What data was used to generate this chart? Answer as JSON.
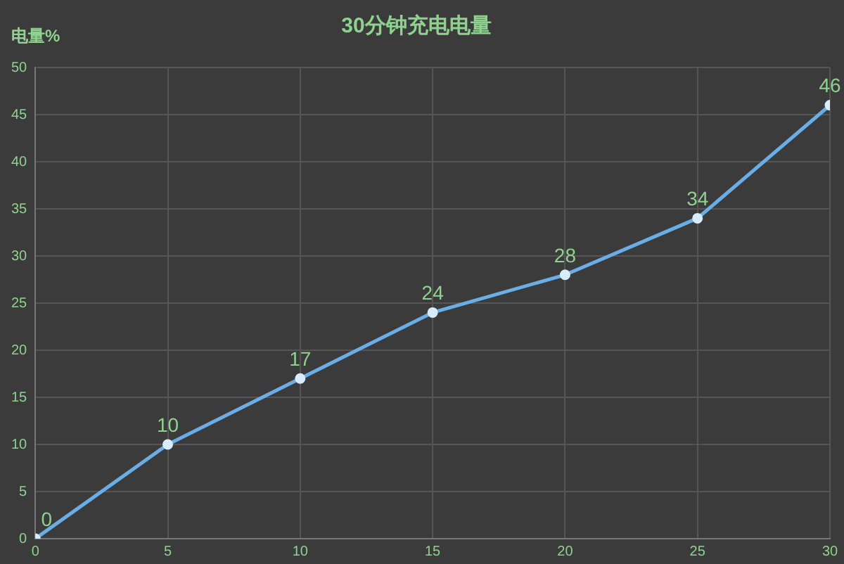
{
  "chart_data": {
    "type": "line",
    "title": "30分钟充电电量",
    "ylabel": "电量%",
    "x": [
      0,
      5,
      10,
      15,
      20,
      25,
      30
    ],
    "series": [
      {
        "color": "#6aaee8",
        "values": [
          0,
          10,
          17,
          24,
          28,
          34,
          46
        ]
      }
    ],
    "xlim": [
      0,
      30
    ],
    "xticks": [
      0,
      5,
      10,
      15,
      20,
      25,
      30
    ],
    "ylim": [
      0,
      50
    ],
    "yticks": [
      0,
      5,
      10,
      15,
      20,
      25,
      30,
      35,
      40,
      45,
      50
    ],
    "grid": true,
    "legend": false,
    "marker": "circle",
    "line_style": "solid",
    "data_labels": true
  }
}
